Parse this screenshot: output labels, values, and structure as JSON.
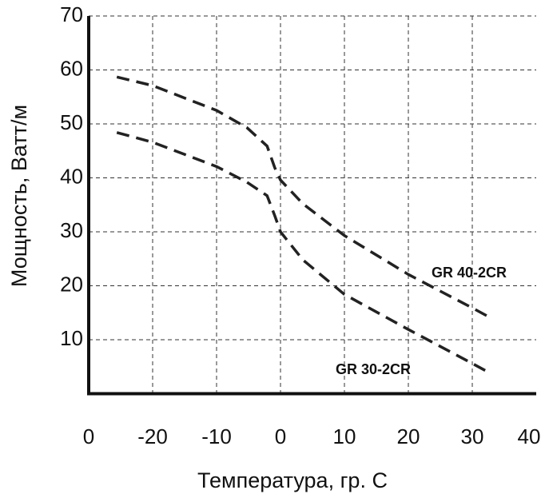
{
  "chart_data": {
    "type": "line",
    "xlabel": "Температура, гр. С",
    "ylabel": "Мощность, Ватт/м",
    "x": [
      -25.6,
      -20,
      -10,
      -5.25,
      -2.1,
      -0.9,
      0,
      3.5,
      10,
      20,
      30,
      32.8
    ],
    "series": [
      {
        "name": "GR 40-2CR",
        "color": "#222222",
        "values": [
          58.7,
          57.1,
          52.5,
          49.3,
          45.9,
          41.9,
          39.6,
          35.2,
          29.3,
          22.1,
          15.9,
          14.1
        ]
      },
      {
        "name": "GR 30-2CR",
        "color": "#222222",
        "values": [
          48.4,
          46.6,
          42.1,
          39.2,
          36.7,
          33,
          30,
          24.8,
          18.4,
          11.9,
          5.6,
          3.8
        ]
      }
    ],
    "xlim": [
      -30,
      40
    ],
    "xticks": [
      {
        "value": -30,
        "label": "0"
      },
      -20,
      -10,
      0,
      10,
      20,
      30,
      40
    ],
    "ylim": [
      0,
      70
    ],
    "yticks": [
      10,
      20,
      30,
      40,
      50,
      60,
      70
    ],
    "grid": true,
    "line_style": "dashed"
  }
}
